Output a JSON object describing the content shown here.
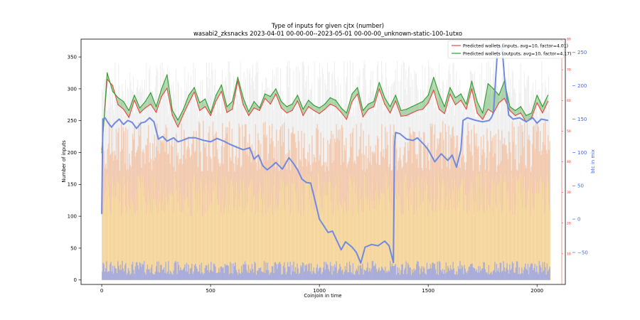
{
  "chart_data": {
    "type": "line",
    "title": "Type of inputs for given cjtx (number)",
    "subtitle": "wasabi2_zksnacks 2023-04-01 00-00-00--2023-05-01 00-00-00_unknown-static-100-1utxo",
    "xlabel": "Coinjoin in time",
    "ylabel": "Number of inputs",
    "y2label": "btc in mix",
    "xlim": [
      -95,
      2130
    ],
    "ylim": [
      -7,
      378
    ],
    "y2lim": [
      -98,
      270
    ],
    "y3lim": [
      0,
      80
    ],
    "x_ticks": [
      0,
      500,
      1000,
      1500,
      2000
    ],
    "y_ticks": [
      0,
      50,
      100,
      150,
      200,
      250,
      300,
      350
    ],
    "y2_ticks": [
      -50,
      0,
      50,
      100,
      150,
      200,
      250
    ],
    "y3_ticks": [
      10,
      20,
      30,
      40,
      50,
      60,
      70,
      80
    ],
    "legend_position": "top-right",
    "grid": false,
    "colors": {
      "inputs": "#e8453c",
      "outputs": "#2e9a2e",
      "overlap": "#8a6f2c",
      "btc": "#6f8ae0",
      "bars_orange": "#f5b48a",
      "bars_yellow": "#fbe9a0",
      "bars_blue": "#8fa0ef",
      "bars_gray": "#c8c8c8",
      "right_axis_blue": "#4169e1",
      "right_axis_red": "#e03020"
    },
    "series": [
      {
        "name": "Predicted wallets (inputs, avg=10, factor=4.01)",
        "axis": "left",
        "x": [
          0,
          25,
          50,
          75,
          100,
          125,
          150,
          175,
          200,
          225,
          250,
          275,
          300,
          325,
          350,
          375,
          400,
          425,
          450,
          475,
          500,
          525,
          550,
          575,
          600,
          625,
          650,
          675,
          700,
          725,
          750,
          775,
          800,
          825,
          850,
          875,
          900,
          925,
          950,
          975,
          1000,
          1025,
          1050,
          1075,
          1100,
          1125,
          1150,
          1175,
          1200,
          1225,
          1250,
          1275,
          1300,
          1325,
          1350,
          1375,
          1400,
          1425,
          1450,
          1475,
          1500,
          1525,
          1550,
          1575,
          1600,
          1625,
          1650,
          1675,
          1700,
          1725,
          1750,
          1775,
          1800,
          1825,
          1850,
          1875,
          1900,
          1925,
          1950,
          1975,
          2000,
          2025,
          2050
        ],
        "y": [
          205,
          315,
          305,
          275,
          268,
          255,
          282,
          262,
          270,
          276,
          263,
          288,
          301,
          258,
          240,
          260,
          278,
          295,
          266,
          272,
          258,
          281,
          296,
          263,
          268,
          312,
          275,
          258,
          270,
          266,
          285,
          276,
          292,
          270,
          262,
          266,
          281,
          258,
          272,
          266,
          261,
          268,
          276,
          272,
          263,
          252,
          280,
          292,
          256,
          268,
          272,
          300,
          276,
          262,
          281,
          257,
          258,
          262,
          266,
          268,
          278,
          298,
          268,
          261,
          292,
          275,
          282,
          268,
          300,
          262,
          252,
          268,
          262,
          278,
          285,
          266,
          258,
          262,
          248,
          255,
          278,
          262,
          280
        ]
      },
      {
        "name": "Predicted wallets (outputs, avg=10, factor=4.17)",
        "axis": "left",
        "x": [
          0,
          25,
          50,
          75,
          100,
          125,
          150,
          175,
          200,
          225,
          250,
          275,
          300,
          325,
          350,
          375,
          400,
          425,
          450,
          475,
          500,
          525,
          550,
          575,
          600,
          625,
          650,
          675,
          700,
          725,
          750,
          775,
          800,
          825,
          850,
          875,
          900,
          925,
          950,
          975,
          1000,
          1025,
          1050,
          1075,
          1100,
          1125,
          1150,
          1175,
          1200,
          1225,
          1250,
          1275,
          1300,
          1325,
          1350,
          1375,
          1400,
          1425,
          1450,
          1475,
          1500,
          1525,
          1550,
          1575,
          1600,
          1625,
          1650,
          1675,
          1700,
          1725,
          1750,
          1775,
          1800,
          1825,
          1850,
          1875,
          1900,
          1925,
          1950,
          1975,
          2000,
          2025,
          2050
        ],
        "y": [
          200,
          325,
          296,
          286,
          280,
          266,
          290,
          270,
          280,
          294,
          272,
          300,
          322,
          266,
          251,
          268,
          290,
          302,
          278,
          284,
          262,
          290,
          306,
          272,
          280,
          318,
          286,
          264,
          280,
          270,
          292,
          288,
          300,
          280,
          272,
          276,
          290,
          268,
          282,
          274,
          270,
          276,
          286,
          282,
          270,
          262,
          292,
          302,
          266,
          276,
          280,
          310,
          286,
          272,
          290,
          266,
          268,
          272,
          276,
          280,
          290,
          318,
          292,
          272,
          302,
          286,
          292,
          276,
          312,
          280,
          262,
          308,
          300,
          290,
          312,
          272,
          266,
          272,
          258,
          262,
          290,
          272,
          290
        ]
      },
      {
        "name": "btc in mix",
        "axis": "right",
        "x": [
          0,
          5,
          15,
          30,
          45,
          60,
          80,
          100,
          120,
          140,
          160,
          180,
          200,
          220,
          240,
          260,
          280,
          300,
          330,
          350,
          370,
          400,
          430,
          470,
          500,
          530,
          560,
          590,
          620,
          650,
          680,
          700,
          720,
          740,
          760,
          780,
          800,
          830,
          860,
          880,
          900,
          920,
          940,
          960,
          980,
          1000,
          1020,
          1040,
          1060,
          1080,
          1100,
          1120,
          1150,
          1170,
          1190,
          1210,
          1240,
          1270,
          1300,
          1320,
          1330,
          1340,
          1345,
          1350,
          1370,
          1400,
          1430,
          1450,
          1480,
          1500,
          1530,
          1560,
          1590,
          1610,
          1630,
          1650,
          1660,
          1680,
          1700,
          1720,
          1750,
          1780,
          1790,
          1800,
          1820,
          1840,
          1850,
          1870,
          1890,
          1920,
          1950,
          1980,
          2000,
          2020,
          2050
        ],
        "y": [
          8,
          150,
          152,
          144,
          138,
          144,
          150,
          142,
          148,
          145,
          136,
          144,
          146,
          152,
          146,
          120,
          124,
          117,
          122,
          116,
          118,
          122,
          122,
          118,
          116,
          121,
          117,
          112,
          108,
          104,
          107,
          90,
          96,
          80,
          74,
          79,
          85,
          75,
          92,
          84,
          74,
          60,
          55,
          54,
          28,
          0,
          -10,
          -20,
          -18,
          -32,
          -46,
          -34,
          -42,
          -50,
          -66,
          -42,
          -38,
          -40,
          -33,
          -40,
          -52,
          -65,
          110,
          130,
          128,
          120,
          118,
          122,
          112,
          104,
          86,
          98,
          88,
          96,
          78,
          104,
          148,
          152,
          150,
          148,
          146,
          148,
          152,
          160,
          262,
          256,
          214,
          156,
          150,
          152,
          146,
          152,
          144,
          150,
          148
        ]
      }
    ]
  }
}
